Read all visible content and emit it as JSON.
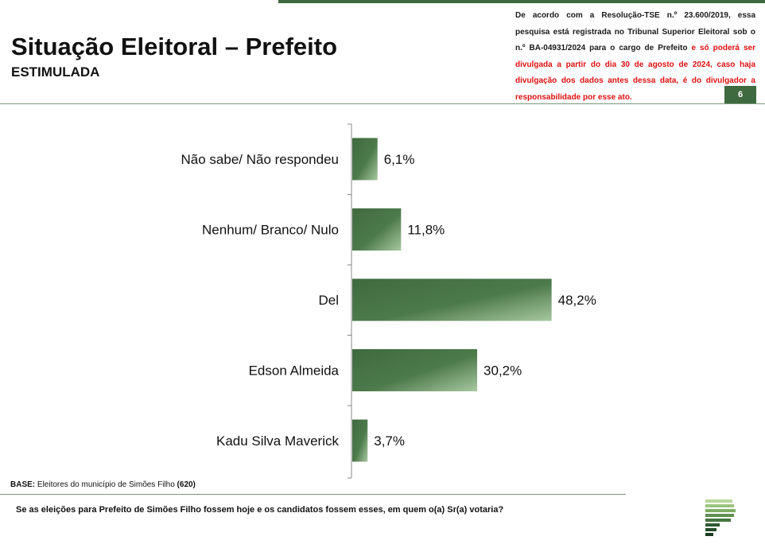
{
  "header": {
    "title": "Situação Eleitoral – Prefeito",
    "subtitle": "ESTIMULADA",
    "disclaimer_black": "De acordo com a Resolução-TSE n.º 23.600/2019, essa pesquisa está registrada no Tribunal Superior Eleitoral sob o n.º BA-04931/2024 para o cargo de Prefeito",
    "disclaimer_red": " e só poderá ser divulgada a partir do dia 30 de agosto de 2024, caso haja divulgação dos dados antes dessa data, é do divulgador a responsabilidade por esse ato.",
    "page_number": "6"
  },
  "footer": {
    "base_label": "BASE:",
    "base_text": " Eleitores do município de Simões Filho ",
    "base_count": "(620)",
    "question": "Se as eleições para Prefeito de Simões Filho fossem hoje e os candidatos fossem esses, em quem o(a) Sr(a) votaria?"
  },
  "colors": {
    "bar_dark": "#3f6a3f",
    "bar_light": "#a8c8a0",
    "accent": "#3f6a3f",
    "warning_text": "#e01010"
  },
  "chart_data": {
    "type": "bar",
    "orientation": "horizontal",
    "categories": [
      "Não sabe/ Não respondeu",
      "Nenhum/ Branco/ Nulo",
      "Del",
      "Edson Almeida",
      "Kadu Silva Maverick"
    ],
    "values": [
      6.1,
      11.8,
      48.2,
      30.2,
      3.7
    ],
    "value_labels": [
      "6,1%",
      "11,8%",
      "48,2%",
      "30,2%",
      "3,7%"
    ],
    "unit": "%",
    "xlim": [
      0,
      100
    ],
    "grid": false,
    "legend": "none"
  }
}
